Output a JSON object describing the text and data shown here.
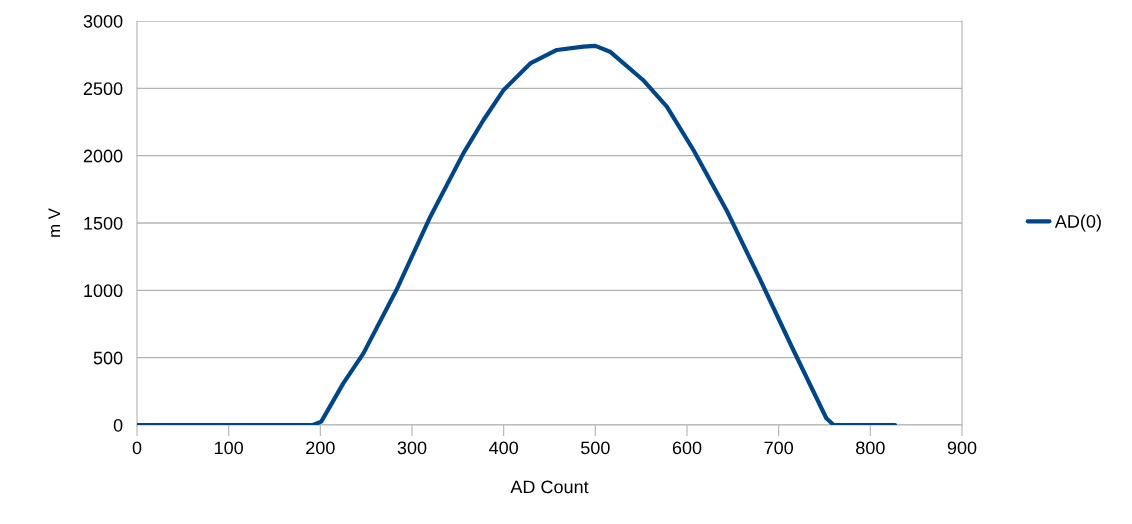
{
  "chart_data": {
    "type": "line",
    "xlabel": "AD Count",
    "ylabel": "m V",
    "series": [
      {
        "name": "AD(0)",
        "color": "#004586",
        "x": [
          0,
          100,
          192,
          201,
          225,
          247,
          283,
          320,
          356,
          378,
          400,
          429,
          458,
          487,
          500,
          516,
          552,
          578,
          607,
          643,
          680,
          716,
          752,
          760,
          800,
          827
        ],
        "values": [
          0,
          0,
          0,
          25,
          309,
          532,
          1002,
          1547,
          2017,
          2265,
          2488,
          2685,
          2785,
          2810,
          2815,
          2772,
          2562,
          2364,
          2042,
          1597,
          1077,
          557,
          50,
          0,
          0,
          0
        ]
      }
    ],
    "xlim": [
      0,
      900
    ],
    "xticks": [
      0,
      100,
      200,
      300,
      400,
      500,
      600,
      700,
      800,
      900
    ],
    "ylim": [
      0,
      3000
    ],
    "yticks": [
      0,
      500,
      1000,
      1500,
      2000,
      2500,
      3000
    ],
    "grid": "y",
    "legend": "right",
    "marker": "none",
    "line_style": "solid"
  }
}
